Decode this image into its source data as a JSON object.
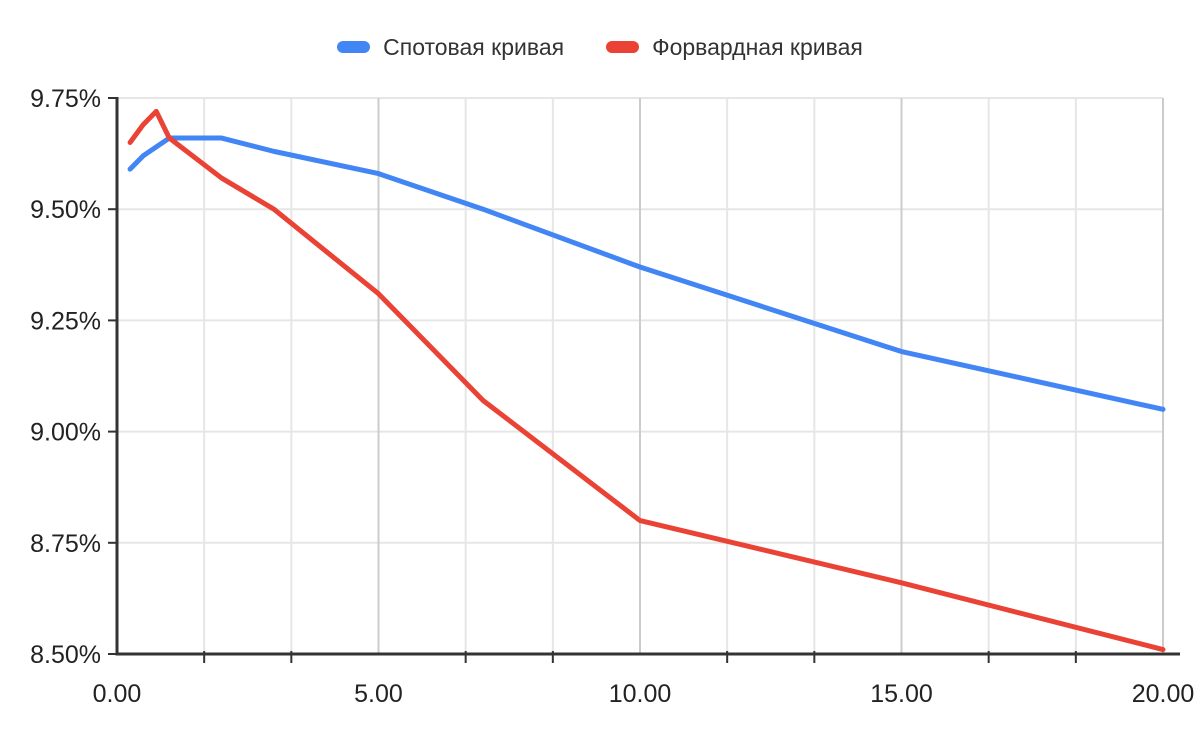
{
  "page": {
    "background": "#ffffff"
  },
  "chart_data": {
    "type": "line",
    "title": "",
    "xlabel": "",
    "ylabel": "",
    "legend_position": "top",
    "grid": {
      "horizontal": true,
      "vertical": true
    },
    "x": [
      0.25,
      0.5,
      0.75,
      1,
      2,
      3,
      5,
      7,
      10,
      15,
      20
    ],
    "series": [
      {
        "name": "Спотовая кривая",
        "color": "#4285F4",
        "values": [
          9.59,
          9.62,
          9.64,
          9.66,
          9.66,
          9.63,
          9.58,
          9.5,
          9.37,
          9.18,
          9.05
        ]
      },
      {
        "name": "Форвардная кривая",
        "color": "#EA4335",
        "values": [
          9.65,
          9.69,
          9.72,
          9.66,
          9.57,
          9.5,
          9.31,
          9.07,
          8.8,
          8.66,
          8.51
        ]
      }
    ],
    "x_axis": {
      "min": 0,
      "max": 20,
      "major_tick_values": [
        0,
        5,
        10,
        15,
        20
      ],
      "major_tick_labels": [
        "0.00",
        "5.00",
        "10.00",
        "15.00",
        "20.00"
      ],
      "minor_divisions_per_major": 3
    },
    "y_axis": {
      "min": 8.5,
      "max": 9.75,
      "tick_step": 0.25,
      "tick_labels": [
        "9.75%",
        "9.50%",
        "9.25%",
        "9.00%",
        "8.75%",
        "8.50%"
      ]
    }
  },
  "style_colors": {
    "axis": "#333333",
    "gridline_minor": "#e6e6e6",
    "gridline_major": "#cccccc",
    "axis_label_text": "#222222",
    "legend_text": "#333333"
  }
}
